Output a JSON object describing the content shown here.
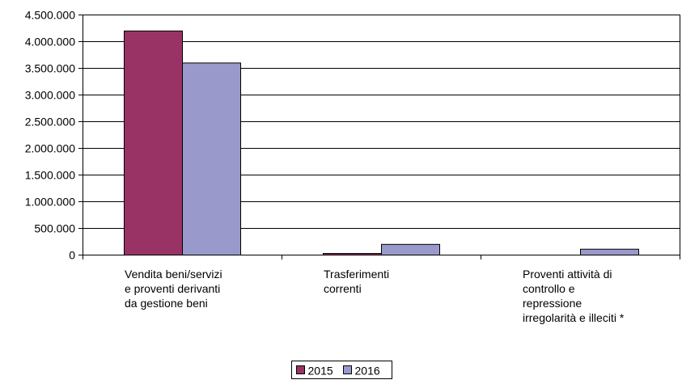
{
  "chart_data": {
    "type": "bar",
    "title": "",
    "xlabel": "",
    "ylabel": "",
    "categories": [
      [
        "Vendita beni/servizi",
        "e proventi derivanti",
        "da gestione beni"
      ],
      [
        "Trasferimenti",
        "correnti"
      ],
      [
        "Proventi attività di",
        "controllo e",
        "repressione",
        "irregolarità e illeciti *"
      ]
    ],
    "series": [
      {
        "name": "2015",
        "values": [
          4200000,
          30000,
          0
        ],
        "color": "#993366"
      },
      {
        "name": "2016",
        "values": [
          3600000,
          200000,
          110000
        ],
        "color": "#9999CC"
      }
    ],
    "ylim": [
      0,
      4500000
    ],
    "yticks": [
      0,
      500000,
      1000000,
      1500000,
      2000000,
      2500000,
      3000000,
      3500000,
      4000000,
      4500000
    ],
    "ytick_labels": [
      "0",
      "500.000",
      "1.000.000",
      "1.500.000",
      "2.000.000",
      "2.500.000",
      "3.000.000",
      "3.500.000",
      "4.000.000",
      "4.500.000"
    ],
    "grid": true,
    "legend": "bottom-center"
  }
}
